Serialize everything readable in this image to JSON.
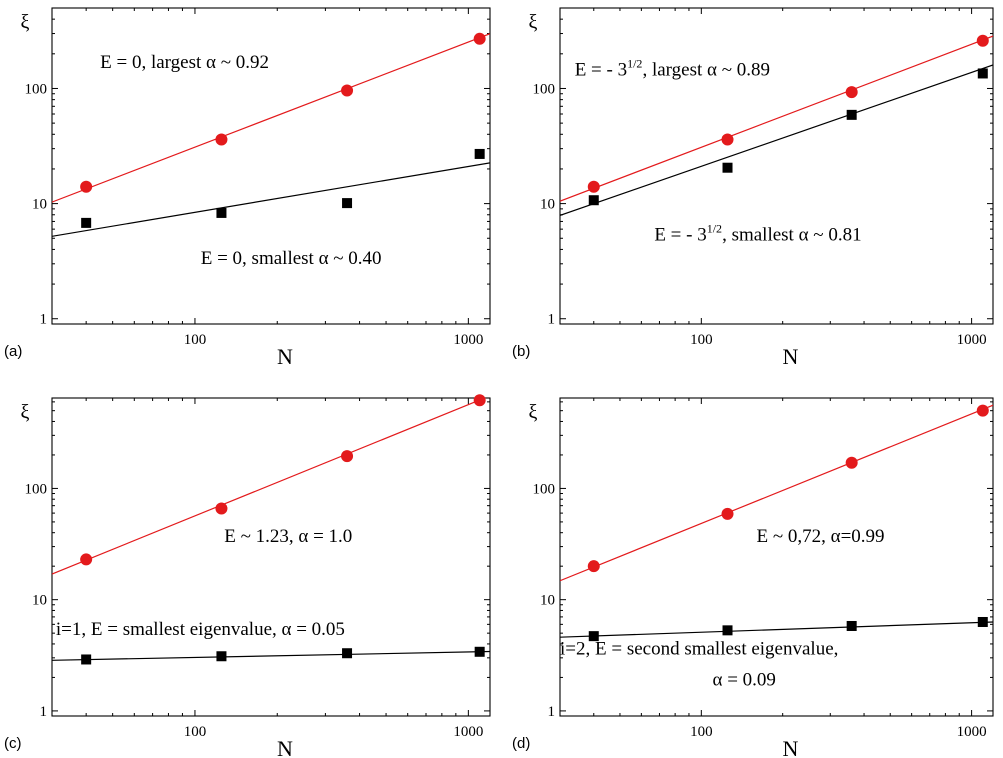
{
  "chart_data": [
    {
      "type": "scatter",
      "panel_label": "(a)",
      "xlabel": "N",
      "ylabel": "ξ",
      "xscale": "log",
      "yscale": "log",
      "xlim": [
        30,
        1200
      ],
      "ylim": [
        0.9,
        500
      ],
      "xticks": [
        100,
        1000
      ],
      "xtick_labels": [
        "100",
        "1000"
      ],
      "yticks": [
        1,
        10,
        100
      ],
      "ytick_labels": [
        "1",
        "10",
        "100"
      ],
      "series": [
        {
          "color": "#e31a1c",
          "marker": "circle",
          "x": [
            40,
            125,
            360,
            1100
          ],
          "y": [
            14,
            36,
            96,
            270
          ],
          "fit": {
            "x": [
              30,
              1200
            ],
            "y": [
              10.3,
              299
            ]
          }
        },
        {
          "color": "#000000",
          "marker": "square",
          "x": [
            40,
            125,
            360,
            1100
          ],
          "y": [
            6.8,
            8.3,
            10.1,
            27
          ],
          "fit": {
            "x": [
              30,
              1200
            ],
            "y": [
              5.2,
              22.6
            ]
          }
        }
      ],
      "annotations": [
        {
          "text": "E = 0, largest α ~ 0.92",
          "x": 45,
          "y": 150
        },
        {
          "text": "E = 0, smallest α ~ 0.40",
          "x": 105,
          "y": 3.0
        }
      ]
    },
    {
      "type": "scatter",
      "panel_label": "(b)",
      "xlabel": "N",
      "ylabel": "ξ",
      "xscale": "log",
      "yscale": "log",
      "xlim": [
        30,
        1200
      ],
      "ylim": [
        0.9,
        500
      ],
      "xticks": [
        100,
        1000
      ],
      "xtick_labels": [
        "100",
        "1000"
      ],
      "yticks": [
        1,
        10,
        100
      ],
      "ytick_labels": [
        "1",
        "10",
        "100"
      ],
      "series": [
        {
          "color": "#e31a1c",
          "marker": "circle",
          "x": [
            40,
            125,
            360,
            1100
          ],
          "y": [
            14,
            36,
            93,
            260
          ],
          "fit": {
            "x": [
              30,
              1200
            ],
            "y": [
              10.5,
              285
            ]
          }
        },
        {
          "color": "#000000",
          "marker": "square",
          "x": [
            40,
            125,
            360,
            1100
          ],
          "y": [
            10.7,
            20.5,
            59,
            135
          ],
          "fit": {
            "x": [
              30,
              1200
            ],
            "y": [
              7.9,
              160
            ]
          }
        }
      ],
      "annotations": [
        {
          "text": "E = - 3",
          "sup": "1/2",
          "rest": ", largest α ~ 0.89",
          "x": 34,
          "y": 130
        },
        {
          "text": "E = - 3",
          "sup": "1/2",
          "rest": ", smallest α ~ 0.81",
          "x": 67,
          "y": 4.8
        }
      ]
    },
    {
      "type": "scatter",
      "panel_label": "(c)",
      "xlabel": "N",
      "ylabel": "ξ",
      "xscale": "log",
      "yscale": "log",
      "xlim": [
        30,
        1200
      ],
      "ylim": [
        0.9,
        650
      ],
      "xticks": [
        100,
        1000
      ],
      "xtick_labels": [
        "100",
        "1000"
      ],
      "yticks": [
        1,
        10,
        100
      ],
      "ytick_labels": [
        "1",
        "10",
        "100"
      ],
      "series": [
        {
          "color": "#e31a1c",
          "marker": "circle",
          "x": [
            40,
            125,
            360,
            1100
          ],
          "y": [
            23,
            66,
            195,
            620
          ],
          "fit": {
            "x": [
              30,
              1200
            ],
            "y": [
              17,
              680
            ]
          }
        },
        {
          "color": "#000000",
          "marker": "square",
          "x": [
            40,
            125,
            360,
            1100
          ],
          "y": [
            2.9,
            3.1,
            3.3,
            3.4
          ],
          "fit": {
            "x": [
              30,
              1200
            ],
            "y": [
              2.85,
              3.42
            ]
          }
        }
      ],
      "annotations": [
        {
          "text": "E ~ 1.23, α = 1.0",
          "x": 128,
          "y": 33
        },
        {
          "text": "i=1, E = smallest eigenvalue, α = 0.05",
          "x": 31,
          "y": 4.8
        }
      ]
    },
    {
      "type": "scatter",
      "panel_label": "(d)",
      "xlabel": "N",
      "ylabel": "ξ",
      "xscale": "log",
      "yscale": "log",
      "xlim": [
        30,
        1200
      ],
      "ylim": [
        0.9,
        650
      ],
      "xticks": [
        100,
        1000
      ],
      "xtick_labels": [
        "100",
        "1000"
      ],
      "yticks": [
        1,
        10,
        100
      ],
      "ytick_labels": [
        "1",
        "10",
        "100"
      ],
      "series": [
        {
          "color": "#e31a1c",
          "marker": "circle",
          "x": [
            40,
            125,
            360,
            1100
          ],
          "y": [
            20,
            59,
            170,
            500
          ],
          "fit": {
            "x": [
              30,
              1200
            ],
            "y": [
              14.8,
              560
            ]
          }
        },
        {
          "color": "#000000",
          "marker": "square",
          "x": [
            40,
            125,
            360,
            1100
          ],
          "y": [
            4.7,
            5.3,
            5.8,
            6.3
          ],
          "fit": {
            "x": [
              30,
              1200
            ],
            "y": [
              4.6,
              6.3
            ]
          }
        }
      ],
      "annotations": [
        {
          "text": "E ~ 0,72, α=0.99",
          "x": 160,
          "y": 33
        },
        {
          "text": "i=2, E = second smallest eigenvalue,",
          "x": 30,
          "y": 3.2
        },
        {
          "text": "α = 0.09",
          "x": 110,
          "y": 1.7
        }
      ]
    }
  ]
}
